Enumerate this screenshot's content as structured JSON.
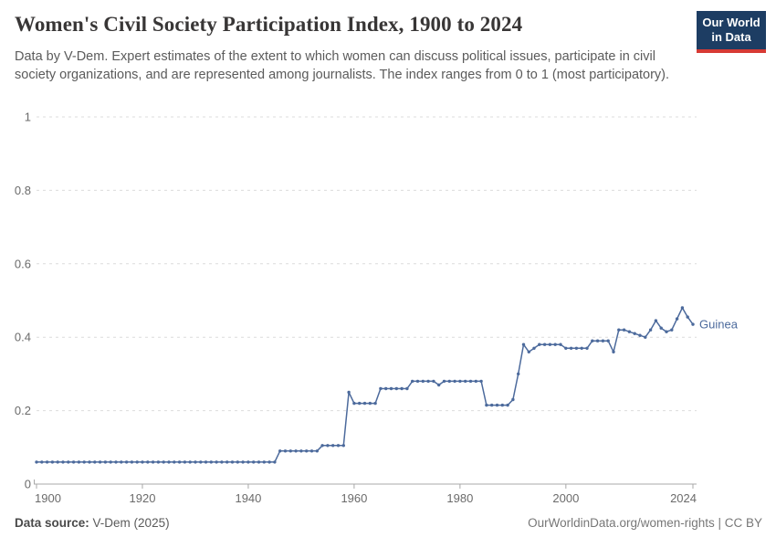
{
  "header": {
    "title": "Women's Civil Society Participation Index, 1900 to 2024",
    "subtitle": "Data by V-Dem. Expert estimates of the extent to which women can discuss political issues, participate in civil society organizations, and are represented among journalists. The index ranges from 0 to 1 (most participatory).",
    "logo": {
      "line1": "Our World",
      "line2": "in Data",
      "bg": "#1d3d63",
      "accent": "#d73a34"
    }
  },
  "chart_data": {
    "type": "line",
    "title": "Women's Civil Society Participation Index, 1900 to 2024",
    "xlabel": "",
    "ylabel": "",
    "xlim": [
      1900,
      2024
    ],
    "ylim": [
      0,
      1
    ],
    "grid": "horizontal-dashed",
    "legend_position": "end-of-line-label",
    "x_ticks": [
      1900,
      1920,
      1940,
      1960,
      1980,
      2000,
      2024
    ],
    "y_ticks": [
      {
        "value": 0,
        "label": "0"
      },
      {
        "value": 0.2,
        "label": "0.2"
      },
      {
        "value": 0.4,
        "label": "0.4"
      },
      {
        "value": 0.6,
        "label": "0.6"
      },
      {
        "value": 0.8,
        "label": "0.8"
      },
      {
        "value": 1,
        "label": "1"
      }
    ],
    "series": [
      {
        "name": "Guinea",
        "color": "#4c6a9c",
        "x_start": 1900,
        "x_step": 1,
        "values": [
          0.06,
          0.06,
          0.06,
          0.06,
          0.06,
          0.06,
          0.06,
          0.06,
          0.06,
          0.06,
          0.06,
          0.06,
          0.06,
          0.06,
          0.06,
          0.06,
          0.06,
          0.06,
          0.06,
          0.06,
          0.06,
          0.06,
          0.06,
          0.06,
          0.06,
          0.06,
          0.06,
          0.06,
          0.06,
          0.06,
          0.06,
          0.06,
          0.06,
          0.06,
          0.06,
          0.06,
          0.06,
          0.06,
          0.06,
          0.06,
          0.06,
          0.06,
          0.06,
          0.06,
          0.06,
          0.06,
          0.09,
          0.09,
          0.09,
          0.09,
          0.09,
          0.09,
          0.09,
          0.09,
          0.105,
          0.105,
          0.105,
          0.105,
          0.105,
          0.25,
          0.22,
          0.22,
          0.22,
          0.22,
          0.22,
          0.26,
          0.26,
          0.26,
          0.26,
          0.26,
          0.26,
          0.28,
          0.28,
          0.28,
          0.28,
          0.28,
          0.27,
          0.28,
          0.28,
          0.28,
          0.28,
          0.28,
          0.28,
          0.28,
          0.28,
          0.215,
          0.215,
          0.215,
          0.215,
          0.215,
          0.23,
          0.3,
          0.38,
          0.36,
          0.37,
          0.38,
          0.38,
          0.38,
          0.38,
          0.38,
          0.37,
          0.37,
          0.37,
          0.37,
          0.37,
          0.39,
          0.39,
          0.39,
          0.39,
          0.36,
          0.42,
          0.42,
          0.415,
          0.41,
          0.405,
          0.4,
          0.42,
          0.445,
          0.425,
          0.415,
          0.42,
          0.45,
          0.48,
          0.455,
          0.435
        ]
      }
    ]
  },
  "footer": {
    "source_label": "Data source:",
    "source_value": "V-Dem (2025)",
    "credit": "OurWorldinData.org/women-rights | CC BY"
  }
}
